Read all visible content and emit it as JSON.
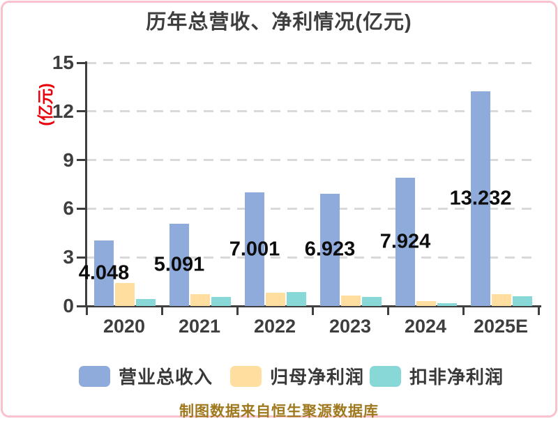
{
  "title": "历年总营收、净利情况(亿元)",
  "y_axis": {
    "label": "(亿元)",
    "label_color": "#e8000b",
    "ticks": [
      0,
      3,
      6,
      9,
      12,
      15
    ],
    "max": 15
  },
  "chart_data": {
    "type": "bar",
    "title": "历年总营收、净利情况(亿元)",
    "xlabel": "",
    "ylabel": "(亿元)",
    "ylim": [
      0,
      15
    ],
    "grid": "horizontal-dashed",
    "legend_position": "bottom",
    "categories": [
      "2020",
      "2021",
      "2022",
      "2023",
      "2024",
      "2025E"
    ],
    "series": [
      {
        "name": "营业总收入",
        "color": "#8eabdc",
        "values": [
          4.048,
          5.091,
          7.001,
          6.923,
          7.924,
          13.232
        ],
        "value_labels": [
          "4.048",
          "5.091",
          "7.001",
          "6.923",
          "7.924",
          "13.232"
        ],
        "show_labels": true
      },
      {
        "name": "归母净利润",
        "color": "#ffdea0",
        "values": [
          1.4,
          0.72,
          0.82,
          0.65,
          0.3,
          0.72
        ],
        "show_labels": false
      },
      {
        "name": "扣非净利润",
        "color": "#89d8d8",
        "values": [
          0.45,
          0.57,
          0.85,
          0.55,
          0.18,
          0.6
        ],
        "show_labels": false
      }
    ]
  },
  "legend": {
    "items": [
      {
        "label": "营业总收入",
        "color": "#8eabdc"
      },
      {
        "label": "归母净利润",
        "color": "#ffdea0"
      },
      {
        "label": "扣非净利润",
        "color": "#89d8d8"
      }
    ]
  },
  "footer": {
    "text": "制图数据来自恒生聚源数据库",
    "color": "#a0791f"
  },
  "frame_color": "#f7c2cd"
}
